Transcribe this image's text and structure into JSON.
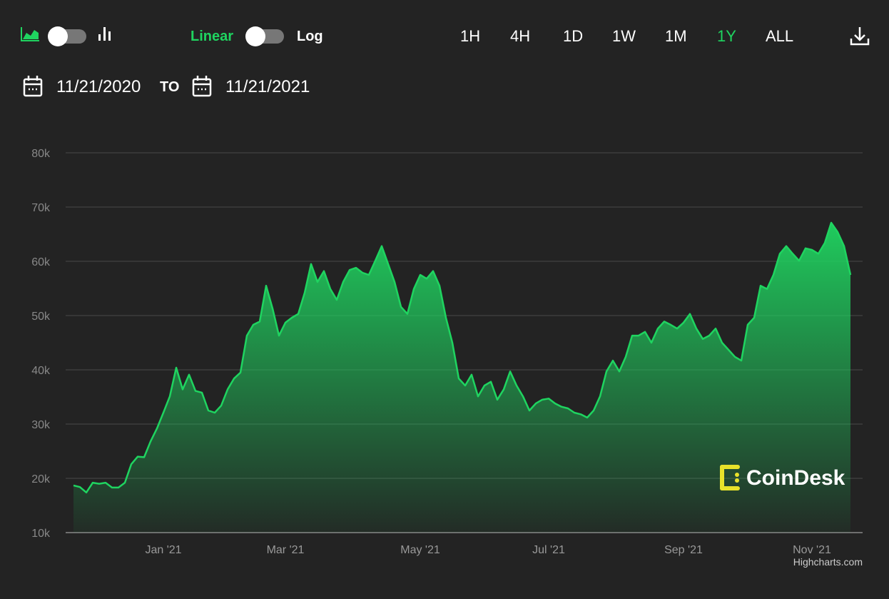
{
  "controls": {
    "linear": "Linear",
    "log": "Log",
    "ranges": [
      "1H",
      "4H",
      "1D",
      "1W",
      "1M",
      "1Y",
      "ALL"
    ],
    "from": "11/21/2020",
    "to_word": "TO",
    "to": "11/21/2021"
  },
  "chart_data": {
    "type": "area",
    "color": "#1fd460",
    "grid": true,
    "ylim": [
      10000,
      80000
    ],
    "yticks": [
      {
        "value": 10000,
        "label": "10k"
      },
      {
        "value": 20000,
        "label": "20k"
      },
      {
        "value": 30000,
        "label": "30k"
      },
      {
        "value": 40000,
        "label": "40k"
      },
      {
        "value": 50000,
        "label": "50k"
      },
      {
        "value": 60000,
        "label": "60k"
      },
      {
        "value": 70000,
        "label": "70k"
      },
      {
        "value": 80000,
        "label": "80k"
      }
    ],
    "categories": [
      null,
      null,
      null,
      null,
      null,
      null,
      null,
      null,
      null,
      null,
      null,
      null,
      null,
      null,
      "Jan '21",
      null,
      null,
      null,
      null,
      null,
      null,
      null,
      null,
      null,
      null,
      null,
      null,
      null,
      null,
      null,
      null,
      null,
      null,
      "Mar '21",
      null,
      null,
      null,
      null,
      null,
      null,
      null,
      null,
      null,
      null,
      null,
      null,
      null,
      null,
      null,
      null,
      null,
      null,
      null,
      null,
      "May '21",
      null,
      null,
      null,
      null,
      null,
      null,
      null,
      null,
      null,
      null,
      null,
      null,
      null,
      null,
      null,
      null,
      null,
      null,
      null,
      "Jul '21",
      null,
      null,
      null,
      null,
      null,
      null,
      null,
      null,
      null,
      null,
      null,
      null,
      null,
      null,
      null,
      null,
      null,
      null,
      null,
      null,
      "Sep '21",
      null,
      null,
      null,
      null,
      null,
      null,
      null,
      null,
      null,
      null,
      null,
      null,
      null,
      null,
      null,
      null,
      null,
      null,
      null,
      "Nov '21",
      null,
      null,
      null,
      null,
      null,
      null
    ],
    "values": [
      18700,
      18400,
      17400,
      19200,
      19000,
      19200,
      18300,
      18300,
      19200,
      22600,
      24000,
      23900,
      26800,
      29200,
      32100,
      35100,
      40400,
      36400,
      39100,
      36100,
      35800,
      32500,
      32100,
      33400,
      36400,
      38400,
      39500,
      46300,
      48300,
      48900,
      55500,
      51300,
      46300,
      48700,
      49600,
      50300,
      54200,
      59500,
      56200,
      58200,
      54900,
      52900,
      56200,
      58400,
      58800,
      57900,
      57500,
      60100,
      62800,
      59500,
      56200,
      51600,
      50300,
      54900,
      57500,
      56800,
      58200,
      55500,
      49600,
      45000,
      38400,
      37100,
      39100,
      35100,
      37100,
      37800,
      34500,
      36400,
      39700,
      37100,
      35100,
      32500,
      33800,
      34500,
      34700,
      33800,
      33200,
      32900,
      32100,
      31800,
      31200,
      32500,
      35100,
      39700,
      41700,
      39700,
      42400,
      46300,
      46300,
      47000,
      45000,
      47600,
      48900,
      48300,
      47600,
      48700,
      50300,
      47600,
      45700,
      46300,
      47600,
      45000,
      43700,
      42400,
      41700,
      48300,
      49600,
      55500,
      54900,
      57500,
      61400,
      62800,
      61400,
      60100,
      62400,
      62100,
      61400,
      63400,
      67100,
      65400,
      62800,
      57500
    ],
    "watermark": "CoinDesk",
    "credit": "Highcharts.com"
  }
}
